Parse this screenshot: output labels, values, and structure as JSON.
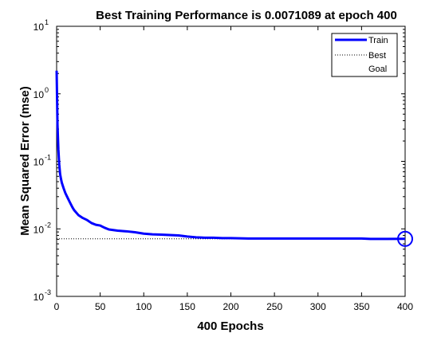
{
  "chart_data": {
    "type": "line",
    "title": "Best Training Performance is 0.0071089 at epoch 400",
    "xlabel": "400 Epochs",
    "ylabel": "Mean Squared Error  (mse)",
    "xlim": [
      0,
      400
    ],
    "ylim": [
      0.001,
      10
    ],
    "yscale": "log",
    "x_ticks": [
      "0",
      "50",
      "100",
      "150",
      "200",
      "250",
      "300",
      "350",
      "400"
    ],
    "y_ticks": [
      {
        "base": "10",
        "exp": "1"
      },
      {
        "base": "10",
        "exp": "0"
      },
      {
        "base": "10",
        "exp": "-1"
      },
      {
        "base": "10",
        "exp": "-2"
      },
      {
        "base": "10",
        "exp": "-3"
      }
    ],
    "grid": false,
    "legend_position": "top-right",
    "legend": [
      "Train",
      "Best",
      "Goal"
    ],
    "series": [
      {
        "name": "Train",
        "color": "#0000ff",
        "x": [
          0,
          1,
          2,
          3,
          4,
          5,
          6,
          8,
          10,
          12,
          15,
          18,
          20,
          25,
          30,
          35,
          40,
          45,
          50,
          55,
          60,
          70,
          80,
          90,
          100,
          110,
          120,
          130,
          140,
          150,
          160,
          170,
          180,
          190,
          200,
          220,
          240,
          260,
          280,
          300,
          320,
          340,
          350,
          360,
          380,
          400
        ],
        "y": [
          2.2,
          0.35,
          0.15,
          0.09,
          0.065,
          0.055,
          0.048,
          0.04,
          0.034,
          0.03,
          0.025,
          0.021,
          0.019,
          0.016,
          0.0145,
          0.0135,
          0.0122,
          0.0115,
          0.0112,
          0.0104,
          0.0098,
          0.0094,
          0.0092,
          0.0089,
          0.0085,
          0.0083,
          0.0082,
          0.0081,
          0.008,
          0.0077,
          0.0075,
          0.0074,
          0.0074,
          0.0073,
          0.0073,
          0.0072,
          0.0072,
          0.0072,
          0.0072,
          0.0072,
          0.0072,
          0.0072,
          0.0072,
          0.0071,
          0.0071,
          0.0071089
        ]
      },
      {
        "name": "Best",
        "color": "#000000",
        "style": "dotted",
        "y": 0.0071089
      }
    ],
    "best_point": {
      "x": 400,
      "y": 0.0071089,
      "marker": "circle",
      "color": "#0000ff"
    }
  }
}
